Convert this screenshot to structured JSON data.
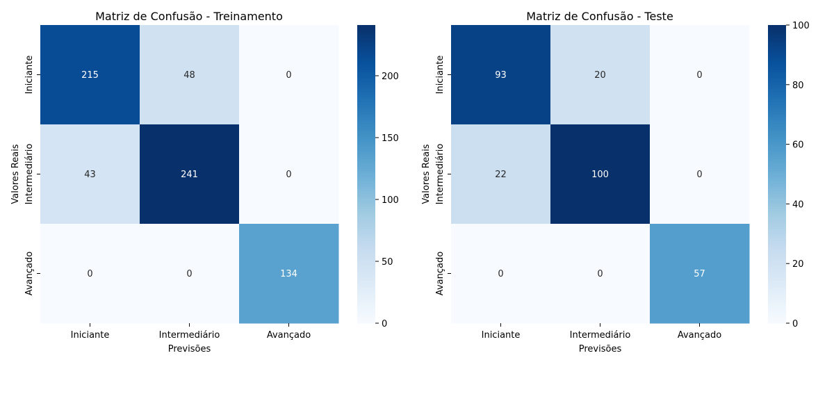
{
  "chart_data": [
    {
      "type": "heatmap",
      "title": "Matriz de Confusão - Treinamento",
      "xlabel": "Previsões",
      "ylabel": "Valores Reais",
      "x_categories": [
        "Iniciante",
        "Intermediário",
        "Avançado"
      ],
      "y_categories": [
        "Iniciante",
        "Intermediário",
        "Avançado"
      ],
      "matrix": [
        [
          215,
          48,
          0
        ],
        [
          43,
          241,
          0
        ],
        [
          0,
          0,
          134
        ]
      ],
      "colormap": "Blues",
      "vmin": 0,
      "vmax": 241,
      "colorbar_ticks": [
        0,
        50,
        100,
        150,
        200
      ]
    },
    {
      "type": "heatmap",
      "title": "Matriz de Confusão - Teste",
      "xlabel": "Previsões",
      "ylabel": "Valores Reais",
      "x_categories": [
        "Iniciante",
        "Intermediário",
        "Avançado"
      ],
      "y_categories": [
        "Iniciante",
        "Intermediário",
        "Avançado"
      ],
      "matrix": [
        [
          93,
          20,
          0
        ],
        [
          22,
          100,
          0
        ],
        [
          0,
          0,
          57
        ]
      ],
      "colormap": "Blues",
      "vmin": 0,
      "vmax": 100,
      "colorbar_ticks": [
        0,
        20,
        40,
        60,
        80,
        100
      ]
    }
  ]
}
